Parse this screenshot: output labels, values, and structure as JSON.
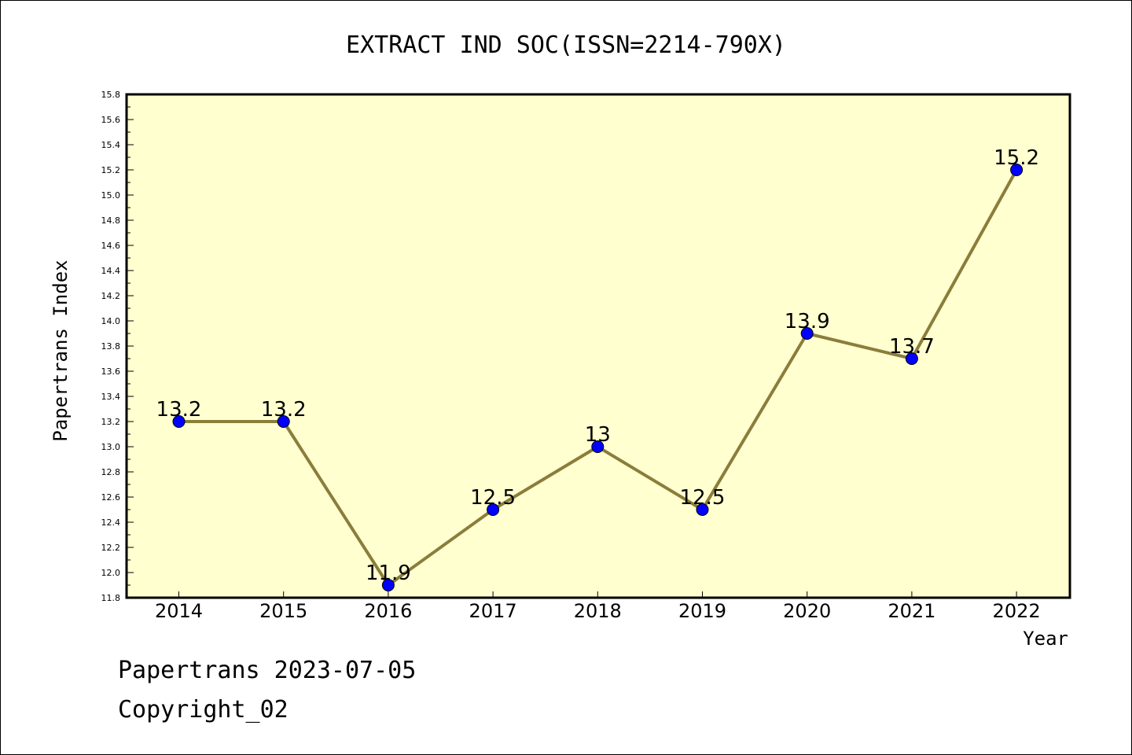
{
  "chart_data": {
    "type": "line",
    "title": "EXTRACT IND SOC(ISSN=2214-790X)",
    "xlabel": "Year",
    "ylabel": "Papertrans Index",
    "categories": [
      "2014",
      "2015",
      "2016",
      "2017",
      "2018",
      "2019",
      "2020",
      "2021",
      "2022"
    ],
    "values": [
      13.2,
      13.2,
      11.9,
      12.5,
      13.0,
      12.5,
      13.9,
      13.7,
      15.2
    ],
    "data_labels": [
      "13.2",
      "13.2",
      "11.9",
      "12.5",
      "13",
      "12.5",
      "13.9",
      "13.7",
      "15.2"
    ],
    "ylim": [
      11.8,
      15.8
    ],
    "yticks": [
      "11.8",
      "12.0",
      "12.2",
      "12.4",
      "12.6",
      "12.8",
      "13.0",
      "13.2",
      "13.4",
      "13.6",
      "13.8",
      "14.0",
      "14.2",
      "14.4",
      "14.6",
      "14.8",
      "15.0",
      "15.2",
      "15.4",
      "15.6",
      "15.8"
    ],
    "grid": false,
    "line_color": "#8b7d3a",
    "marker_color": "#0000ff",
    "plot_background": "#ffffd0"
  },
  "footer": {
    "line1": "Papertrans 2023-07-05",
    "line2": "Copyright_02"
  }
}
